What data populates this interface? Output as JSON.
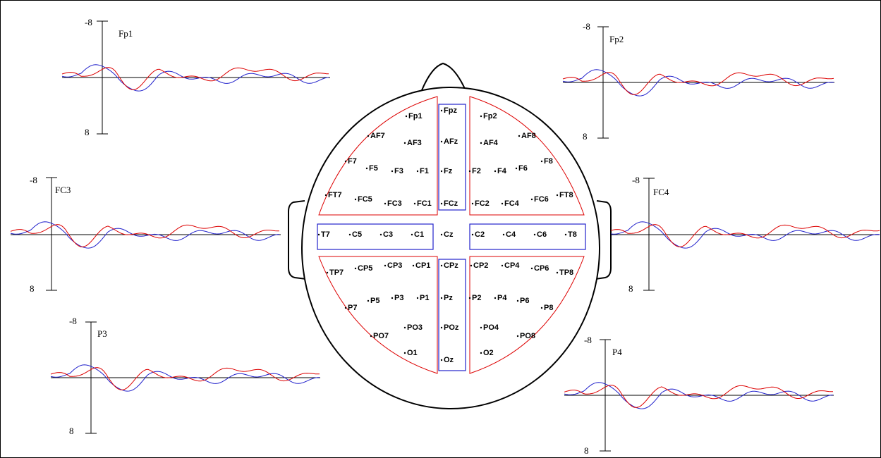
{
  "panels": [
    {
      "channel": "Fp1",
      "top_label": "-8",
      "bottom_label": "8"
    },
    {
      "channel": "Fp2",
      "top_label": "-8",
      "bottom_label": "8"
    },
    {
      "channel": "FC3",
      "top_label": "-8",
      "bottom_label": "8"
    },
    {
      "channel": "FC4",
      "top_label": "-8",
      "bottom_label": "8"
    },
    {
      "channel": "P3",
      "top_label": "-8",
      "bottom_label": "8"
    },
    {
      "channel": "P4",
      "top_label": "-8",
      "bottom_label": "8"
    }
  ],
  "electrodes": [
    "Fpz",
    "Fp1",
    "Fp2",
    "AF7",
    "AF3",
    "AFz",
    "AF4",
    "AF8",
    "F7",
    "F5",
    "F3",
    "F1",
    "Fz",
    "F2",
    "F4",
    "F6",
    "F8",
    "FT7",
    "FC5",
    "FC3",
    "FC1",
    "FCz",
    "FC2",
    "FC4",
    "FC6",
    "FT8",
    "T7",
    "C5",
    "C3",
    "C1",
    "Cz",
    "C2",
    "C4",
    "C6",
    "T8",
    "TP7",
    "CP5",
    "CP3",
    "CP1",
    "CPz",
    "CP2",
    "CP4",
    "CP6",
    "TP8",
    "P7",
    "P5",
    "P3",
    "P1",
    "Pz",
    "P2",
    "P4",
    "P6",
    "P8",
    "PO7",
    "PO3",
    "POz",
    "PO4",
    "PO8",
    "O1",
    "Oz",
    "O2"
  ]
}
